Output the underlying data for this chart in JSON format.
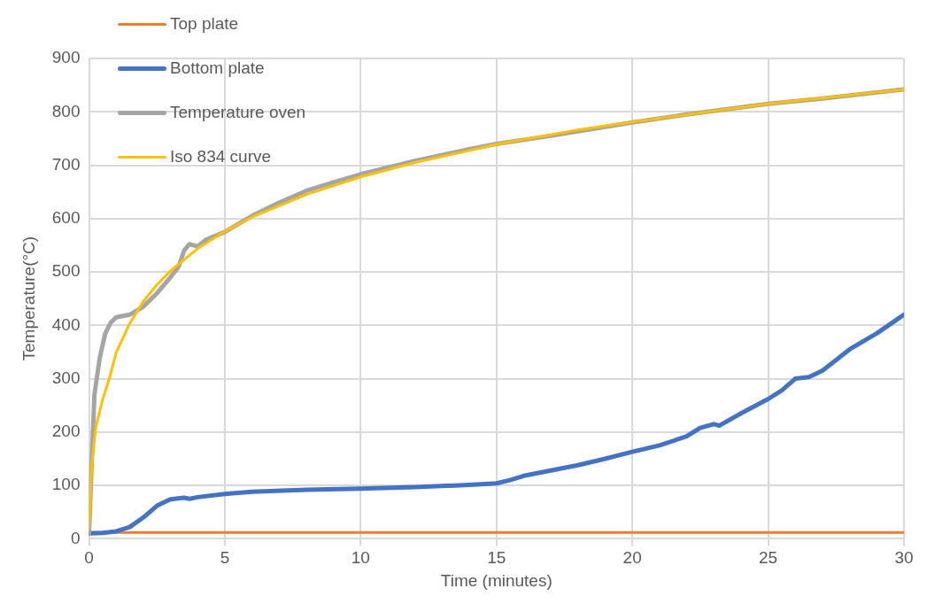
{
  "chart_data": {
    "type": "line",
    "xlabel": "Time (minutes)",
    "ylabel": "Temperature(°C)",
    "xlim": [
      0,
      30
    ],
    "xticks": [
      0,
      5,
      10,
      15,
      20,
      25,
      30
    ],
    "ylim": [
      0,
      900
    ],
    "yticks": [
      0,
      100,
      200,
      300,
      400,
      500,
      600,
      700,
      800,
      900
    ],
    "grid": true,
    "legend": "top left",
    "marker": "none",
    "line_style": "solid",
    "series": [
      {
        "name": "Top plate",
        "color": "#ed7d31",
        "x": [
          0,
          5,
          10,
          15,
          20,
          25,
          30
        ],
        "values": [
          12,
          12,
          12,
          12,
          12,
          12,
          12
        ]
      },
      {
        "name": "Bottom plate",
        "color": "#4472c4",
        "x": [
          0,
          0.5,
          1,
          1.5,
          2,
          2.5,
          3,
          3.5,
          3.7,
          4,
          5,
          6,
          8,
          10,
          12,
          14,
          15,
          15.5,
          16,
          17,
          18,
          19,
          20,
          21,
          22,
          22.5,
          23,
          23.2,
          24,
          25,
          25.5,
          26,
          26.5,
          27,
          27.5,
          28,
          29,
          30
        ],
        "values": [
          10,
          11,
          14,
          22,
          40,
          62,
          74,
          77,
          75,
          78,
          84,
          88,
          92,
          94,
          97,
          101,
          104,
          110,
          118,
          128,
          138,
          150,
          163,
          175,
          192,
          208,
          215,
          212,
          235,
          262,
          278,
          300,
          303,
          315,
          335,
          355,
          385,
          420
        ]
      },
      {
        "name": "Temperature oven",
        "color": "#a5a5a5",
        "x": [
          0,
          0.2,
          0.4,
          0.6,
          0.8,
          1,
          1.5,
          2,
          2.5,
          3,
          3.3,
          3.5,
          3.7,
          4,
          4.3,
          5,
          6,
          7,
          8,
          9,
          10,
          12,
          14,
          15,
          17,
          20,
          22,
          25,
          27,
          30
        ],
        "values": [
          10,
          270,
          340,
          385,
          405,
          415,
          420,
          435,
          460,
          490,
          510,
          540,
          552,
          548,
          560,
          575,
          605,
          630,
          652,
          668,
          683,
          708,
          730,
          740,
          755,
          780,
          795,
          815,
          825,
          842
        ]
      },
      {
        "name": "Iso 834 curve",
        "color": "#ffc000",
        "x": [
          0,
          0.1,
          0.25,
          0.5,
          0.75,
          1,
          1.5,
          2,
          2.5,
          3,
          4,
          5,
          6,
          8,
          10,
          12,
          15,
          18,
          20,
          25,
          30
        ],
        "values": [
          20,
          139,
          209,
          261,
          301,
          349,
          404,
          445,
          476,
          502,
          544,
          576,
          603,
          645,
          678,
          705,
          739,
          766,
          781,
          815,
          842
        ]
      }
    ]
  }
}
